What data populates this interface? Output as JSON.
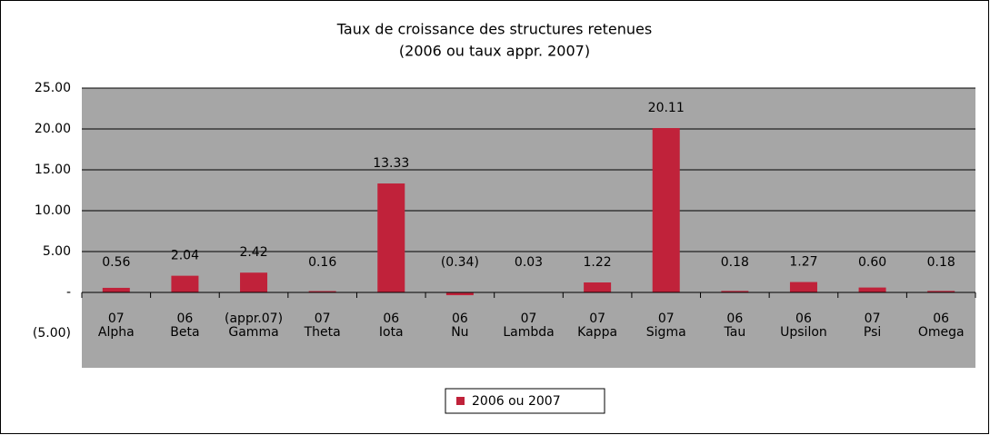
{
  "chart_data": {
    "type": "bar",
    "title": "Taux de croissance des structures retenues",
    "subtitle": "(2006 ou taux appr. 2007)",
    "categories": [
      [
        "07",
        "Alpha"
      ],
      [
        "06",
        "Beta"
      ],
      [
        "(appr.07)",
        "Gamma"
      ],
      [
        "07",
        "Theta"
      ],
      [
        "06",
        "Iota"
      ],
      [
        "06",
        "Nu"
      ],
      [
        "07",
        "Lambda"
      ],
      [
        "07",
        "Kappa"
      ],
      [
        "07",
        "Sigma"
      ],
      [
        "06",
        "Tau"
      ],
      [
        "06",
        "Upsilon"
      ],
      [
        "07",
        "Psi"
      ],
      [
        "06",
        "Omega"
      ]
    ],
    "series": [
      {
        "name": "2006 ou 2007",
        "color": "#c0223a",
        "values": [
          0.56,
          2.04,
          2.42,
          0.16,
          13.33,
          -0.34,
          0.03,
          1.22,
          20.11,
          0.18,
          1.27,
          0.6,
          0.18
        ],
        "value_labels": [
          "0.56",
          "2.04",
          "2.42",
          "0.16",
          "13.33",
          "(0.34)",
          "0.03",
          "1.22",
          "20.11",
          "0.18",
          "1.27",
          "0.60",
          "0.18"
        ]
      }
    ],
    "ylim": [
      -5,
      25
    ],
    "yticks": [
      {
        "value": -5,
        "label": "(5.00)"
      },
      {
        "value": 0,
        "label": "-"
      },
      {
        "value": 5,
        "label": "5.00"
      },
      {
        "value": 10,
        "label": "10.00"
      },
      {
        "value": 15,
        "label": "15.00"
      },
      {
        "value": 20,
        "label": "20.00"
      },
      {
        "value": 25,
        "label": "25.00"
      }
    ],
    "grid": true,
    "legend": "bottom",
    "plot_color": "#a6a6a6"
  }
}
